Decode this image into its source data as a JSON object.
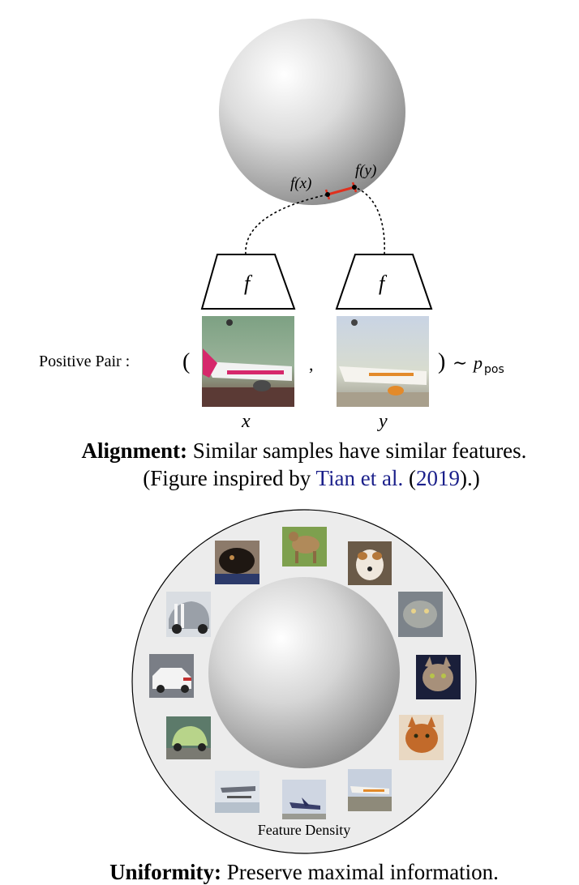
{
  "alignment": {
    "fx_label": "f(x)",
    "fy_label": "f(y)",
    "encoder_left": "f",
    "encoder_right": "f",
    "positive_pair_label": "Positive Pair :",
    "open_paren": "(",
    "comma": ",",
    "close_paren": ")",
    "sim": "∼",
    "p_symbol": "p",
    "p_subscript": "pos",
    "x_label": "x",
    "y_label": "y",
    "caption_bold": "Alignment:",
    "caption_text": "Similar samples have similar features.",
    "caption_line2_pre": "(Figure inspired by ",
    "caption_line2_link": "Tian et al.",
    "caption_line2_mid": " (",
    "caption_line2_year": "2019",
    "caption_line2_post": ").)"
  },
  "uniformity": {
    "density_label": "Feature Density",
    "caption_bold": "Uniformity:",
    "caption_text": "Preserve maximal information.",
    "thumbnails": [
      "dog-black",
      "dog-terrier-standing",
      "dog-jack-russell",
      "cat-pallas",
      "cat-tabby-dark",
      "cat-orange",
      "airplane-jet",
      "airplane-easyjet",
      "airplane-seaplane",
      "car-smart",
      "car-bmw",
      "car-shelby"
    ]
  },
  "colors": {
    "alignment_segment": "#e0301e",
    "link": "#1a1f8a"
  }
}
